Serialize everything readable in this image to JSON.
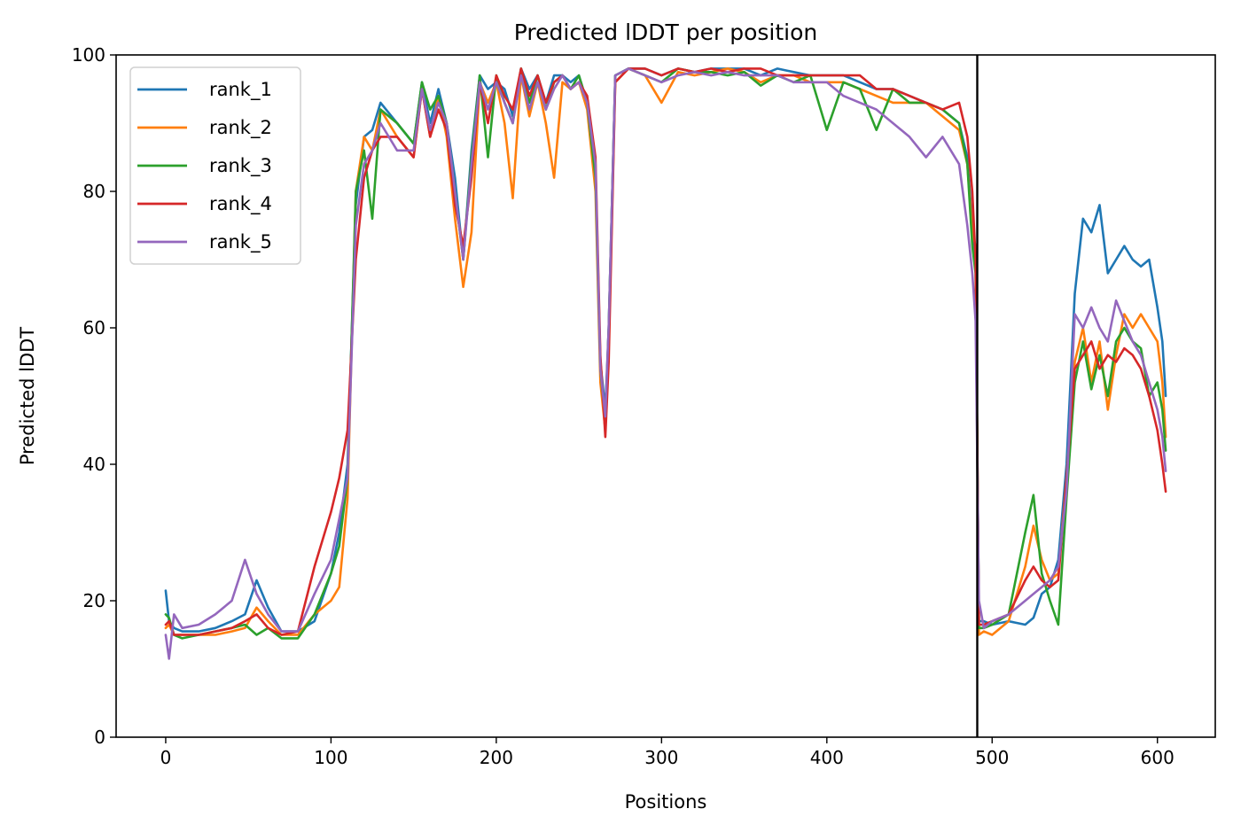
{
  "chart_data": {
    "type": "line",
    "title": "Predicted lDDT per position",
    "xlabel": "Positions",
    "ylabel": "Predicted lDDT",
    "xlim": [
      -30,
      635
    ],
    "ylim": [
      0,
      100
    ],
    "xticks": [
      0,
      100,
      200,
      300,
      400,
      500,
      600
    ],
    "yticks": [
      0,
      20,
      40,
      60,
      80,
      100
    ],
    "grid": false,
    "legend_position": "top-left",
    "chain_break": 491,
    "chain_break_color": "#000000",
    "series": [
      {
        "name": "rank_1",
        "color": "#1f77b4",
        "x": [
          0,
          2,
          5,
          10,
          20,
          30,
          40,
          48,
          55,
          62,
          70,
          80,
          90,
          100,
          105,
          110,
          115,
          120,
          125,
          130,
          140,
          150,
          155,
          160,
          165,
          170,
          175,
          180,
          185,
          190,
          195,
          200,
          205,
          210,
          215,
          220,
          225,
          230,
          235,
          240,
          245,
          250,
          255,
          260,
          263,
          266,
          268,
          272,
          280,
          290,
          300,
          310,
          320,
          330,
          340,
          350,
          360,
          370,
          380,
          390,
          400,
          410,
          420,
          430,
          440,
          450,
          460,
          470,
          480,
          485,
          488,
          490,
          492,
          495,
          500,
          510,
          520,
          525,
          530,
          535,
          540,
          545,
          550,
          555,
          560,
          565,
          570,
          575,
          580,
          585,
          590,
          595,
          600,
          603,
          605
        ],
        "values": [
          21.5,
          17.0,
          16.0,
          15.5,
          15.5,
          16.0,
          17.0,
          18.0,
          23.0,
          19.0,
          15.5,
          15.5,
          17.0,
          24.0,
          30.0,
          40.0,
          78.0,
          88.0,
          89.0,
          93.0,
          90.0,
          87.0,
          96.0,
          90.0,
          95.0,
          90.0,
          82.0,
          70.0,
          86.0,
          97.0,
          95.0,
          96.0,
          95.0,
          91.0,
          98.0,
          95.0,
          97.0,
          93.0,
          97.0,
          97.0,
          96.0,
          97.0,
          93.0,
          82.0,
          55.0,
          48.0,
          60.0,
          97.0,
          98.0,
          98.0,
          97.0,
          98.0,
          97.5,
          98.0,
          98.0,
          98.0,
          97.0,
          98.0,
          97.5,
          97.0,
          97.0,
          97.0,
          96.0,
          95.0,
          95.0,
          94.0,
          93.0,
          92.0,
          90.0,
          85.0,
          75.0,
          70.0,
          17.0,
          17.0,
          16.5,
          17.0,
          16.5,
          17.5,
          21.0,
          22.0,
          26.0,
          40.0,
          65.0,
          76.0,
          74.0,
          78.0,
          68.0,
          70.0,
          72.0,
          70.0,
          69.0,
          70.0,
          63.0,
          58.0,
          50.0
        ]
      },
      {
        "name": "rank_2",
        "color": "#ff7f0e",
        "x": [
          0,
          2,
          5,
          10,
          20,
          30,
          40,
          48,
          55,
          62,
          70,
          80,
          90,
          100,
          105,
          110,
          115,
          120,
          125,
          130,
          140,
          150,
          155,
          160,
          165,
          170,
          175,
          180,
          185,
          190,
          195,
          200,
          205,
          210,
          215,
          220,
          225,
          230,
          235,
          240,
          245,
          250,
          255,
          260,
          263,
          266,
          268,
          272,
          280,
          290,
          300,
          310,
          320,
          330,
          340,
          350,
          360,
          370,
          380,
          390,
          400,
          410,
          420,
          430,
          440,
          450,
          460,
          470,
          480,
          485,
          488,
          490,
          492,
          495,
          500,
          510,
          520,
          525,
          530,
          535,
          540,
          545,
          550,
          555,
          560,
          565,
          570,
          575,
          580,
          585,
          590,
          595,
          600,
          603,
          605
        ],
        "values": [
          16.0,
          16.5,
          15.0,
          15.0,
          15.0,
          15.0,
          15.5,
          16.0,
          19.0,
          17.0,
          15.0,
          15.0,
          18.0,
          20.0,
          22.0,
          35.0,
          80.0,
          88.0,
          86.0,
          92.0,
          88.0,
          85.0,
          95.0,
          88.0,
          94.0,
          88.0,
          76.0,
          66.0,
          74.0,
          96.0,
          93.0,
          96.0,
          90.0,
          79.0,
          97.0,
          91.0,
          96.0,
          90.0,
          82.0,
          96.0,
          95.0,
          96.0,
          92.0,
          80.0,
          52.0,
          45.0,
          58.0,
          96.0,
          98.0,
          97.0,
          93.0,
          97.5,
          97.0,
          97.5,
          98.0,
          97.5,
          96.0,
          97.0,
          97.0,
          96.0,
          96.0,
          96.0,
          95.0,
          94.0,
          93.0,
          93.0,
          93.0,
          91.0,
          89.0,
          84.0,
          74.0,
          72.0,
          15.0,
          15.5,
          15.0,
          17.0,
          25.0,
          31.0,
          26.0,
          23.0,
          24.0,
          38.0,
          55.0,
          60.0,
          52.0,
          58.0,
          48.0,
          56.0,
          62.0,
          60.0,
          62.0,
          60.0,
          58.0,
          52.0,
          44.0
        ]
      },
      {
        "name": "rank_3",
        "color": "#2ca02c",
        "x": [
          0,
          2,
          5,
          10,
          20,
          30,
          40,
          48,
          55,
          62,
          70,
          80,
          90,
          100,
          105,
          110,
          115,
          120,
          125,
          130,
          140,
          150,
          155,
          160,
          165,
          170,
          175,
          180,
          185,
          190,
          195,
          200,
          205,
          210,
          215,
          220,
          225,
          230,
          235,
          240,
          245,
          250,
          255,
          260,
          263,
          266,
          268,
          272,
          280,
          290,
          300,
          310,
          320,
          330,
          340,
          350,
          360,
          370,
          380,
          390,
          400,
          410,
          420,
          430,
          440,
          450,
          460,
          470,
          480,
          485,
          488,
          490,
          492,
          495,
          500,
          510,
          520,
          525,
          530,
          535,
          540,
          545,
          550,
          555,
          560,
          565,
          570,
          575,
          580,
          585,
          590,
          595,
          600,
          603,
          605
        ],
        "values": [
          18.0,
          17.5,
          15.0,
          14.5,
          15.0,
          15.5,
          16.0,
          16.5,
          15.0,
          16.0,
          14.5,
          14.5,
          18.0,
          24.0,
          28.0,
          38.0,
          80.0,
          86.0,
          76.0,
          92.0,
          90.0,
          87.0,
          96.0,
          92.0,
          94.0,
          90.0,
          80.0,
          70.0,
          85.0,
          97.0,
          85.0,
          97.0,
          93.0,
          90.0,
          98.0,
          93.0,
          97.0,
          92.0,
          96.0,
          97.0,
          95.0,
          97.0,
          93.0,
          82.0,
          54.0,
          46.0,
          60.0,
          97.0,
          98.0,
          97.0,
          96.0,
          98.0,
          97.5,
          97.5,
          97.0,
          97.5,
          95.5,
          97.0,
          96.0,
          97.0,
          89.0,
          96.0,
          95.0,
          89.0,
          95.0,
          93.0,
          93.0,
          92.0,
          90.0,
          84.0,
          72.0,
          68.0,
          16.0,
          16.0,
          16.5,
          18.0,
          30.0,
          35.5,
          24.0,
          20.0,
          16.5,
          35.0,
          52.0,
          58.0,
          51.0,
          56.0,
          50.0,
          58.0,
          60.0,
          58.0,
          57.0,
          50.0,
          52.0,
          48.0,
          42.0
        ]
      },
      {
        "name": "rank_4",
        "color": "#d62728",
        "x": [
          0,
          2,
          5,
          10,
          20,
          30,
          40,
          48,
          55,
          62,
          70,
          80,
          90,
          100,
          105,
          110,
          115,
          120,
          125,
          130,
          140,
          150,
          155,
          160,
          165,
          170,
          175,
          180,
          185,
          190,
          195,
          200,
          205,
          210,
          215,
          220,
          225,
          230,
          235,
          240,
          245,
          250,
          255,
          260,
          263,
          266,
          268,
          272,
          280,
          290,
          300,
          310,
          320,
          330,
          340,
          350,
          360,
          370,
          380,
          390,
          400,
          410,
          420,
          430,
          440,
          450,
          460,
          470,
          480,
          485,
          488,
          490,
          492,
          495,
          500,
          510,
          520,
          525,
          530,
          535,
          540,
          545,
          550,
          555,
          560,
          565,
          570,
          575,
          580,
          585,
          590,
          595,
          600,
          603,
          605
        ],
        "values": [
          16.5,
          17.0,
          15.0,
          15.0,
          15.0,
          15.5,
          16.0,
          17.0,
          18.0,
          16.0,
          15.0,
          15.5,
          25.0,
          33.0,
          38.0,
          45.0,
          70.0,
          82.0,
          86.0,
          88.0,
          88.0,
          85.0,
          95.0,
          88.0,
          92.0,
          89.0,
          78.0,
          72.0,
          82.0,
          96.0,
          90.0,
          97.0,
          94.0,
          92.0,
          98.0,
          94.0,
          97.0,
          93.0,
          96.0,
          97.0,
          95.0,
          96.0,
          94.0,
          85.0,
          56.0,
          44.0,
          55.0,
          96.0,
          98.0,
          98.0,
          97.0,
          98.0,
          97.5,
          98.0,
          97.5,
          98.0,
          98.0,
          97.0,
          97.0,
          97.0,
          97.0,
          97.0,
          97.0,
          95.0,
          95.0,
          94.0,
          93.0,
          92.0,
          93.0,
          88.0,
          80.0,
          70.0,
          16.5,
          16.5,
          17.0,
          18.0,
          23.0,
          25.0,
          23.0,
          22.0,
          23.0,
          38.0,
          54.0,
          56.0,
          58.0,
          54.0,
          56.0,
          55.0,
          57.0,
          56.0,
          54.0,
          50.0,
          45.0,
          40.0,
          36.0
        ]
      },
      {
        "name": "rank_5",
        "color": "#9467bd",
        "x": [
          0,
          2,
          5,
          10,
          20,
          30,
          40,
          48,
          55,
          62,
          70,
          80,
          90,
          100,
          105,
          110,
          115,
          120,
          125,
          130,
          140,
          150,
          155,
          160,
          165,
          170,
          175,
          180,
          185,
          190,
          195,
          200,
          205,
          210,
          215,
          220,
          225,
          230,
          235,
          240,
          245,
          250,
          255,
          260,
          263,
          266,
          268,
          272,
          280,
          290,
          300,
          310,
          320,
          330,
          340,
          350,
          360,
          370,
          380,
          390,
          400,
          410,
          420,
          430,
          440,
          450,
          460,
          470,
          480,
          485,
          488,
          490,
          492,
          495,
          500,
          510,
          520,
          525,
          530,
          535,
          540,
          545,
          550,
          555,
          560,
          565,
          570,
          575,
          580,
          585,
          590,
          595,
          600,
          603,
          605
        ],
        "values": [
          15.0,
          11.5,
          18.0,
          16.0,
          16.5,
          18.0,
          20.0,
          26.0,
          21.0,
          18.0,
          15.5,
          15.5,
          21.0,
          26.0,
          32.0,
          38.0,
          75.0,
          84.0,
          86.0,
          90.0,
          86.0,
          86.0,
          95.0,
          89.0,
          93.0,
          90.0,
          80.0,
          70.0,
          84.0,
          96.0,
          92.0,
          96.0,
          93.0,
          90.0,
          97.0,
          92.0,
          96.0,
          92.0,
          95.0,
          97.0,
          95.0,
          96.0,
          93.0,
          84.0,
          54.0,
          47.0,
          60.0,
          97.0,
          98.0,
          97.0,
          96.0,
          97.0,
          97.5,
          97.0,
          97.5,
          97.0,
          97.0,
          97.0,
          96.0,
          96.0,
          96.0,
          94.0,
          93.0,
          92.0,
          90.0,
          88.0,
          85.0,
          88.0,
          84.0,
          75.0,
          68.0,
          61.0,
          20.0,
          16.0,
          17.0,
          18.0,
          20.0,
          21.0,
          22.0,
          23.0,
          25.0,
          36.0,
          62.0,
          60.0,
          63.0,
          60.0,
          58.0,
          64.0,
          61.0,
          58.0,
          56.0,
          52.0,
          48.0,
          44.0,
          39.0
        ]
      }
    ]
  }
}
